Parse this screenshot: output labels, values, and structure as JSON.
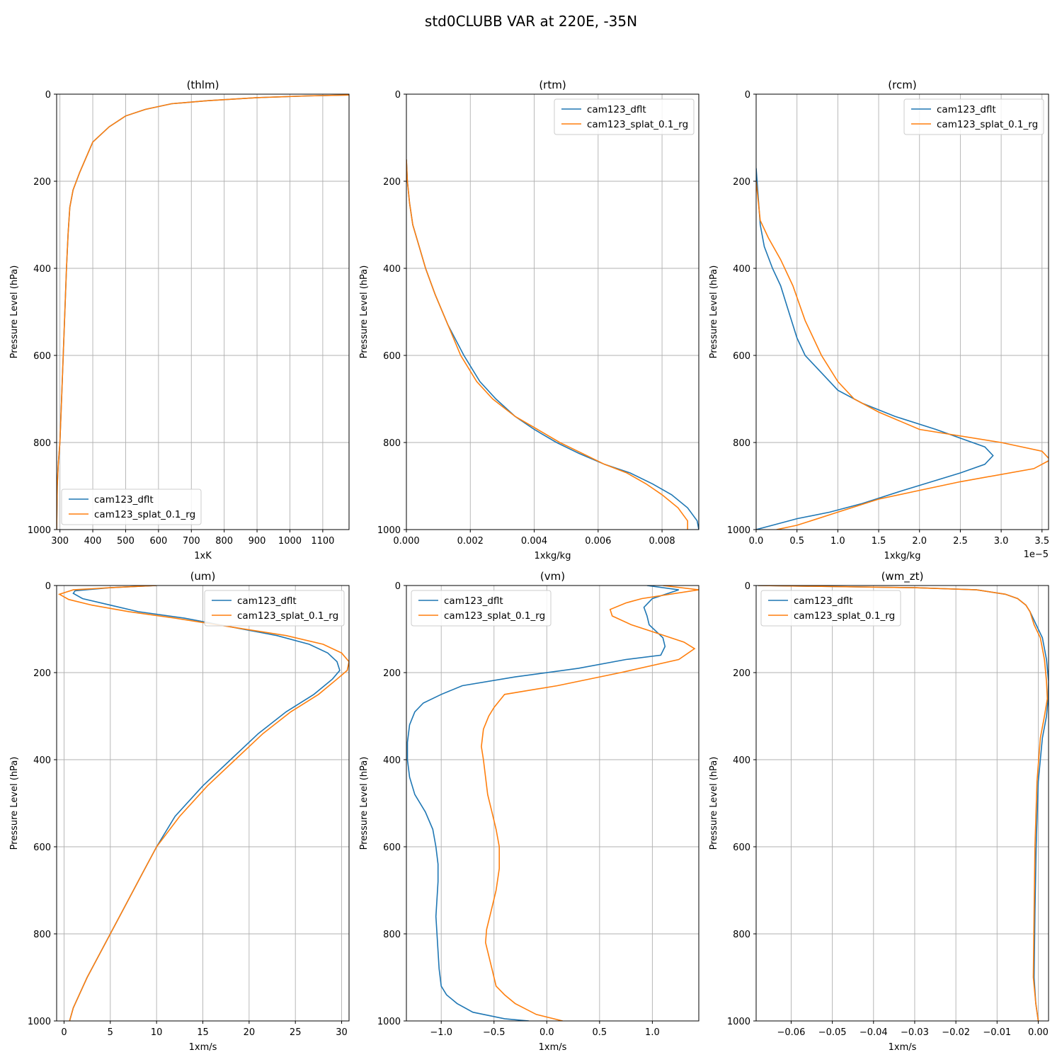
{
  "figure": {
    "title": "std0CLUBB VAR at 220E, -35N"
  },
  "colors": {
    "cam123_dflt": "#1f77b4",
    "cam123_splat_0.1_rg": "#ff7f0e",
    "grid": "#b0b0b0"
  },
  "chart_data": [
    {
      "type": "line",
      "title": "(thlm)",
      "xlabel": "1xK",
      "ylabel": "Pressure Level (hPa)",
      "xlim": [
        290,
        1180
      ],
      "ylim": [
        1000,
        0
      ],
      "xticks": [
        300,
        400,
        500,
        600,
        700,
        800,
        900,
        1000,
        1100
      ],
      "xtick_labels": [
        "300",
        "400",
        "500",
        "600",
        "700",
        "800",
        "900",
        "1000",
        "1100"
      ],
      "yticks": [
        0,
        200,
        400,
        600,
        800,
        1000
      ],
      "ytick_labels": [
        "0",
        "200",
        "400",
        "600",
        "800",
        "1000"
      ],
      "offset_text": "",
      "grid": true,
      "legend": "lower-left",
      "series": [
        {
          "name": "cam123_dflt",
          "color": "#1f77b4",
          "x": [
            290,
            292,
            295,
            300,
            305,
            310,
            315,
            320,
            325,
            330,
            340,
            360,
            400,
            450,
            500,
            560,
            640,
            750,
            900,
            1050,
            1180
          ],
          "y": [
            1000,
            900,
            850,
            800,
            700,
            600,
            500,
            400,
            320,
            260,
            220,
            180,
            110,
            75,
            50,
            35,
            22,
            15,
            8,
            4,
            2
          ]
        },
        {
          "name": "cam123_splat_0.1_rg",
          "color": "#ff7f0e",
          "x": [
            290,
            292,
            295,
            300,
            305,
            310,
            315,
            320,
            325,
            330,
            340,
            360,
            400,
            450,
            500,
            560,
            640,
            750,
            900,
            1050,
            1180
          ],
          "y": [
            1000,
            900,
            850,
            800,
            700,
            600,
            500,
            400,
            320,
            260,
            220,
            180,
            110,
            75,
            50,
            35,
            22,
            15,
            8,
            4,
            2
          ]
        }
      ]
    },
    {
      "type": "line",
      "title": "(rtm)",
      "xlabel": "1xkg/kg",
      "ylabel": "Pressure Level (hPa)",
      "xlim": [
        0,
        0.00915
      ],
      "ylim": [
        1000,
        0
      ],
      "xticks": [
        0,
        0.002,
        0.004,
        0.006,
        0.008
      ],
      "xtick_labels": [
        "0.000",
        "0.002",
        "0.004",
        "0.006",
        "0.008"
      ],
      "yticks": [
        0,
        200,
        400,
        600,
        800,
        1000
      ],
      "ytick_labels": [
        "0",
        "200",
        "400",
        "600",
        "800",
        "1000"
      ],
      "offset_text": "",
      "grid": true,
      "legend": "top-right",
      "series": [
        {
          "name": "cam123_dflt",
          "color": "#1f77b4",
          "x": [
            0,
            3e-05,
            0.0001,
            0.0002,
            0.0004,
            0.0006,
            0.0009,
            0.0013,
            0.0018,
            0.0023,
            0.0028,
            0.0034,
            0.004,
            0.0047,
            0.0054,
            0.0062,
            0.007,
            0.0077,
            0.0083,
            0.0088,
            0.0091,
            0.00915
          ],
          "y": [
            150,
            200,
            250,
            300,
            350,
            400,
            460,
            530,
            600,
            660,
            700,
            740,
            770,
            800,
            825,
            850,
            870,
            895,
            920,
            950,
            980,
            1000
          ]
        },
        {
          "name": "cam123_splat_0.1_rg",
          "color": "#ff7f0e",
          "x": [
            0,
            3e-05,
            0.0001,
            0.0002,
            0.0004,
            0.0006,
            0.0009,
            0.0013,
            0.0017,
            0.0022,
            0.0027,
            0.0034,
            0.0041,
            0.0048,
            0.0055,
            0.0062,
            0.0069,
            0.0075,
            0.008,
            0.0085,
            0.0088,
            0.0088
          ],
          "y": [
            150,
            200,
            250,
            300,
            350,
            400,
            460,
            530,
            600,
            660,
            700,
            740,
            770,
            800,
            825,
            850,
            870,
            895,
            920,
            950,
            980,
            1000
          ]
        }
      ]
    },
    {
      "type": "line",
      "title": "(rcm)",
      "xlabel": "1xkg/kg",
      "ylabel": "Pressure Level (hPa)",
      "xlim": [
        0,
        3.58e-05
      ],
      "ylim": [
        1000,
        0
      ],
      "xticks": [
        0,
        5e-06,
        1e-05,
        1.5e-05,
        2e-05,
        2.5e-05,
        3e-05,
        3.5e-05
      ],
      "xtick_labels": [
        "0.0",
        "0.5",
        "1.0",
        "1.5",
        "2.0",
        "2.5",
        "3.0",
        "3.5"
      ],
      "yticks": [
        0,
        200,
        400,
        600,
        800,
        1000
      ],
      "ytick_labels": [
        "0",
        "200",
        "400",
        "600",
        "800",
        "1000"
      ],
      "offset_text": "1e−5",
      "grid": true,
      "legend": "top-right",
      "series": [
        {
          "name": "cam123_dflt",
          "color": "#1f77b4",
          "x": [
            0,
            2e-06,
            5e-06,
            9e-06,
            1.3e-05,
            1.8e-05,
            2.5e-05,
            2.8e-05,
            2.9e-05,
            2.8e-05,
            2.2e-05,
            1.7e-05,
            1.3e-05,
            1e-05,
            8e-06,
            6e-06,
            5e-06,
            4e-06,
            3e-06,
            2e-06,
            1e-06,
            5e-07,
            0
          ],
          "y": [
            1000,
            990,
            975,
            960,
            940,
            910,
            870,
            850,
            830,
            810,
            770,
            740,
            710,
            680,
            640,
            600,
            560,
            500,
            440,
            400,
            350,
            300,
            170
          ]
        },
        {
          "name": "cam123_splat_0.1_rg",
          "color": "#ff7f0e",
          "x": [
            2.5e-06,
            5e-06,
            1e-05,
            1.5e-05,
            2e-05,
            2.5e-05,
            3.4e-05,
            3.6e-05,
            3.5e-05,
            3e-05,
            2e-05,
            1.5e-05,
            1.2e-05,
            1e-05,
            8e-06,
            6e-06,
            4.5e-06,
            3e-06,
            1.5e-06,
            5e-07,
            0
          ],
          "y": [
            1000,
            990,
            960,
            930,
            910,
            890,
            860,
            840,
            820,
            800,
            770,
            730,
            700,
            660,
            600,
            520,
            440,
            380,
            330,
            290,
            200
          ]
        }
      ]
    },
    {
      "type": "line",
      "title": "(um)",
      "xlabel": "1xm/s",
      "ylabel": "Pressure Level (hPa)",
      "xlim": [
        -0.8,
        30.8
      ],
      "ylim": [
        1000,
        0
      ],
      "xticks": [
        0,
        5,
        10,
        15,
        20,
        25,
        30
      ],
      "xtick_labels": [
        "0",
        "5",
        "10",
        "15",
        "20",
        "25",
        "30"
      ],
      "yticks": [
        0,
        200,
        400,
        600,
        800,
        1000
      ],
      "ytick_labels": [
        "0",
        "200",
        "400",
        "600",
        "800",
        "1000"
      ],
      "offset_text": "",
      "grid": true,
      "legend": "top-right",
      "series": [
        {
          "name": "cam123_dflt",
          "color": "#1f77b4",
          "x": [
            10.0,
            5.0,
            1.2,
            1.0,
            2.0,
            5.0,
            8.0,
            13.0,
            18.0,
            23.0,
            26.5,
            28.5,
            29.5,
            29.8,
            29.0,
            27.0,
            24.0,
            21.0,
            18.0,
            15.0,
            12.0,
            10.0,
            8.5,
            6.5,
            4.5,
            2.5,
            1.0,
            0.6
          ],
          "y": [
            0,
            5,
            12,
            18,
            30,
            45,
            60,
            75,
            95,
            115,
            135,
            155,
            175,
            195,
            215,
            250,
            290,
            340,
            400,
            460,
            530,
            600,
            660,
            740,
            820,
            900,
            970,
            1000
          ]
        },
        {
          "name": "cam123_splat_0.1_rg",
          "color": "#ff7f0e",
          "x": [
            10.0,
            5.0,
            1.0,
            -0.5,
            0.5,
            3.0,
            7.0,
            12.0,
            18.0,
            24.0,
            28.0,
            30.0,
            30.8,
            30.6,
            29.5,
            27.5,
            24.5,
            21.5,
            18.5,
            15.5,
            12.5,
            10.0,
            8.5,
            6.5,
            4.5,
            2.5,
            1.0,
            0.6
          ],
          "y": [
            0,
            5,
            10,
            20,
            32,
            45,
            60,
            75,
            95,
            115,
            135,
            155,
            175,
            195,
            215,
            250,
            290,
            340,
            400,
            460,
            530,
            600,
            660,
            740,
            820,
            900,
            970,
            1000
          ]
        }
      ]
    },
    {
      "type": "line",
      "title": "(vm)",
      "xlabel": "1xm/s",
      "ylabel": "Pressure Level (hPa)",
      "xlim": [
        -1.33,
        1.44
      ],
      "ylim": [
        1000,
        0
      ],
      "xticks": [
        -1.0,
        -0.5,
        0.0,
        0.5,
        1.0
      ],
      "xtick_labels": [
        "−1.0",
        "−0.5",
        "0.0",
        "0.5",
        "1.0"
      ],
      "yticks": [
        0,
        200,
        400,
        600,
        800,
        1000
      ],
      "ytick_labels": [
        "0",
        "200",
        "400",
        "600",
        "800",
        "1000"
      ],
      "offset_text": "",
      "grid": true,
      "legend": "top-left",
      "series": [
        {
          "name": "cam123_dflt",
          "color": "#1f77b4",
          "x": [
            0.95,
            1.25,
            1.0,
            0.92,
            0.95,
            0.97,
            1.1,
            1.12,
            1.08,
            0.75,
            0.3,
            -0.3,
            -0.8,
            -1.0,
            -1.17,
            -1.25,
            -1.3,
            -1.32,
            -1.32,
            -1.3,
            -1.25,
            -1.15,
            -1.08,
            -1.05,
            -1.03,
            -1.03,
            -1.04,
            -1.05,
            -1.04,
            -1.03,
            -1.02,
            -1.0,
            -0.95,
            -0.85,
            -0.7,
            -0.4,
            -0.17
          ],
          "y": [
            0,
            10,
            30,
            50,
            70,
            90,
            120,
            140,
            160,
            170,
            190,
            210,
            230,
            250,
            270,
            290,
            320,
            360,
            400,
            440,
            480,
            520,
            560,
            600,
            640,
            680,
            720,
            760,
            800,
            840,
            880,
            920,
            940,
            960,
            980,
            995,
            1000
          ]
        },
        {
          "name": "cam123_splat_0.1_rg",
          "color": "#ff7f0e",
          "x": [
            1.1,
            1.44,
            0.9,
            0.75,
            0.6,
            0.62,
            0.8,
            1.05,
            1.3,
            1.4,
            1.25,
            0.7,
            0.1,
            -0.4,
            -0.5,
            -0.55,
            -0.6,
            -0.62,
            -0.6,
            -0.58,
            -0.56,
            -0.52,
            -0.48,
            -0.45,
            -0.45,
            -0.48,
            -0.53,
            -0.57,
            -0.58,
            -0.55,
            -0.52,
            -0.48,
            -0.4,
            -0.3,
            -0.1,
            0.15
          ],
          "y": [
            0,
            10,
            30,
            40,
            55,
            70,
            90,
            110,
            130,
            145,
            170,
            200,
            230,
            250,
            280,
            300,
            330,
            370,
            400,
            440,
            480,
            520,
            560,
            600,
            650,
            700,
            750,
            790,
            820,
            850,
            880,
            920,
            940,
            960,
            985,
            1000
          ]
        }
      ]
    },
    {
      "type": "line",
      "title": "(wm_zt)",
      "xlabel": "1xm/s",
      "ylabel": "Pressure Level (hPa)",
      "xlim": [
        -0.0685,
        0.0025
      ],
      "ylim": [
        1000,
        0
      ],
      "xticks": [
        -0.06,
        -0.05,
        -0.04,
        -0.03,
        -0.02,
        -0.01,
        0.0
      ],
      "xtick_labels": [
        "−0.06",
        "−0.05",
        "−0.04",
        "−0.03",
        "−0.02",
        "−0.01",
        "0.00"
      ],
      "yticks": [
        0,
        200,
        400,
        600,
        800,
        1000
      ],
      "ytick_labels": [
        "0",
        "200",
        "400",
        "600",
        "800",
        "1000"
      ],
      "offset_text": "",
      "grid": true,
      "legend": "top-left",
      "series": [
        {
          "name": "cam123_dflt",
          "color": "#1f77b4",
          "x": [
            -0.068,
            -0.03,
            -0.015,
            -0.008,
            -0.005,
            -0.003,
            -0.002,
            -0.0005,
            0.001,
            0.002,
            0.0025,
            0.0024,
            0.002,
            0.001,
            0.0,
            -0.0005,
            -0.0008,
            -0.001,
            -0.0006,
            0.0
          ],
          "y": [
            0,
            5,
            10,
            20,
            30,
            45,
            60,
            90,
            120,
            170,
            220,
            260,
            300,
            350,
            450,
            600,
            750,
            900,
            960,
            1000
          ]
        },
        {
          "name": "cam123_splat_0.1_rg",
          "color": "#ff7f0e",
          "x": [
            -0.068,
            -0.03,
            -0.015,
            -0.008,
            -0.005,
            -0.003,
            -0.002,
            -0.001,
            0.0005,
            0.0015,
            0.002,
            0.0022,
            0.0015,
            0.0005,
            -0.0003,
            -0.0008,
            -0.001,
            -0.0012,
            -0.0006,
            0.0
          ],
          "y": [
            0,
            5,
            10,
            20,
            30,
            45,
            60,
            90,
            120,
            170,
            220,
            260,
            300,
            350,
            450,
            600,
            750,
            900,
            960,
            1000
          ]
        }
      ]
    }
  ]
}
